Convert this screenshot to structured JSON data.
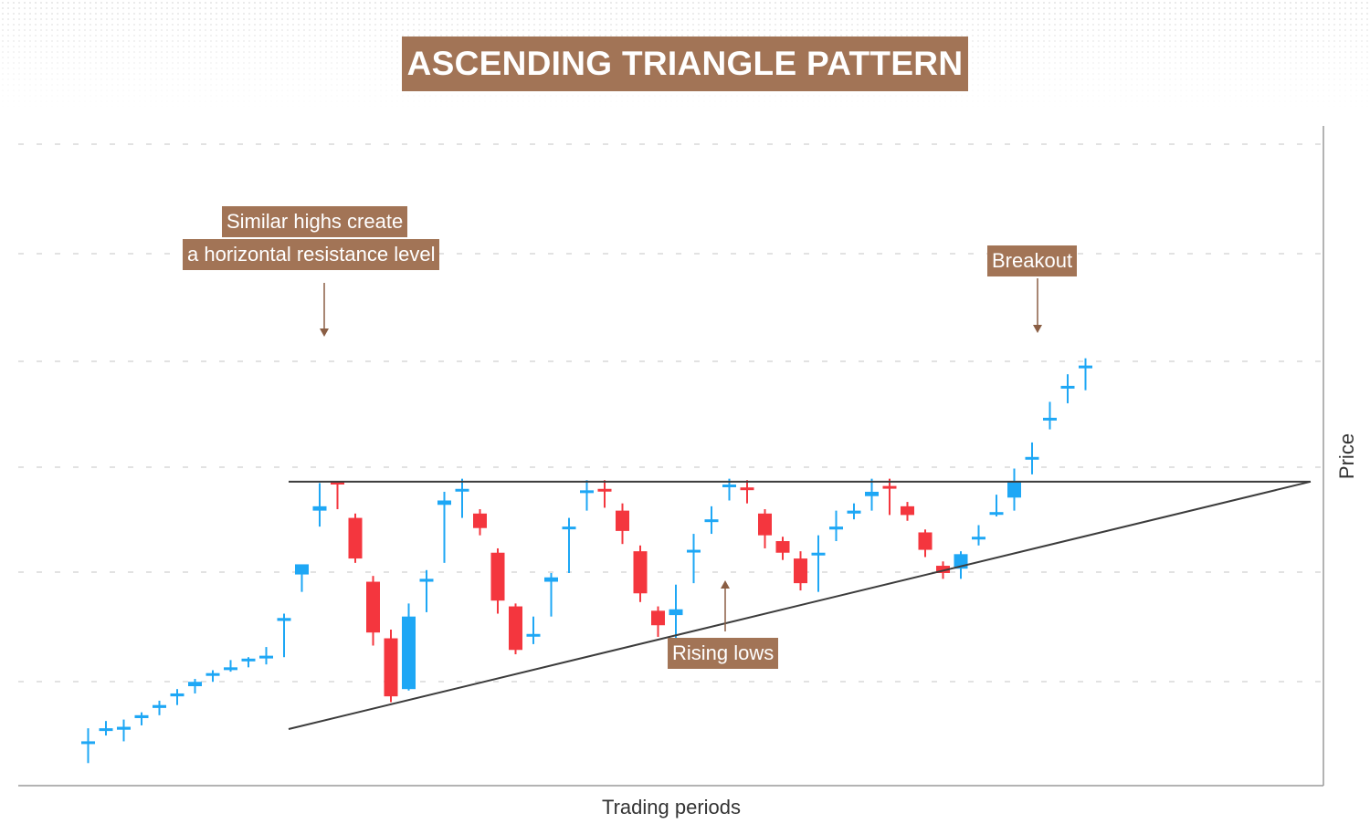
{
  "title": "ASCENDING TRIANGLE PATTERN",
  "annotations": {
    "resistance_line1": "Similar highs create",
    "resistance_line2": "a horizontal resistance level",
    "rising_lows": "Rising lows",
    "breakout": "Breakout"
  },
  "chart_data": {
    "type": "candlestick",
    "title": "ASCENDING TRIANGLE PATTERN",
    "xlabel": "Trading periods",
    "ylabel": "Price",
    "grid": true,
    "colors": {
      "bullish": "#1ea7f5",
      "bearish": "#f4363e",
      "accent": "#a27456",
      "line": "#3c3c3c"
    },
    "candles": [
      {
        "o": 172,
        "h": 182,
        "l": 158,
        "c": 173,
        "dir": "up"
      },
      {
        "o": 181,
        "h": 187,
        "l": 177,
        "c": 182,
        "dir": "up"
      },
      {
        "o": 181,
        "h": 188,
        "l": 173,
        "c": 183,
        "dir": "up"
      },
      {
        "o": 189,
        "h": 193,
        "l": 184,
        "c": 191,
        "dir": "up"
      },
      {
        "o": 198,
        "h": 201,
        "l": 191,
        "c": 196,
        "dir": "up"
      },
      {
        "o": 204,
        "h": 209,
        "l": 198,
        "c": 206,
        "dir": "up"
      },
      {
        "o": 211,
        "h": 216,
        "l": 206,
        "c": 214,
        "dir": "up"
      },
      {
        "o": 220,
        "h": 222,
        "l": 214,
        "c": 219,
        "dir": "up"
      },
      {
        "o": 224,
        "h": 229,
        "l": 221,
        "c": 224,
        "dir": "up"
      },
      {
        "o": 229,
        "h": 231,
        "l": 224,
        "c": 230,
        "dir": "up"
      },
      {
        "o": 232,
        "h": 238,
        "l": 226,
        "c": 231,
        "dir": "up"
      },
      {
        "o": 256,
        "h": 261,
        "l": 231,
        "c": 258,
        "dir": "up"
      },
      {
        "o": 288,
        "h": 294,
        "l": 276,
        "c": 295,
        "dir": "up"
      },
      {
        "o": 332,
        "h": 351,
        "l": 321,
        "c": 335,
        "dir": "up"
      },
      {
        "o": 350,
        "h": 352,
        "l": 333,
        "c": 352,
        "dir": "down"
      },
      {
        "o": 327,
        "h": 330,
        "l": 296,
        "c": 299,
        "dir": "down"
      },
      {
        "o": 283,
        "h": 287,
        "l": 239,
        "c": 248,
        "dir": "down"
      },
      {
        "o": 244,
        "h": 250,
        "l": 200,
        "c": 204,
        "dir": "down"
      },
      {
        "o": 259,
        "h": 268,
        "l": 208,
        "c": 209,
        "dir": "up"
      },
      {
        "o": 285,
        "h": 291,
        "l": 262,
        "c": 283,
        "dir": "up"
      },
      {
        "o": 339,
        "h": 345,
        "l": 296,
        "c": 336,
        "dir": "up"
      },
      {
        "o": 347,
        "h": 354,
        "l": 327,
        "c": 347,
        "dir": "up"
      },
      {
        "o": 330,
        "h": 333,
        "l": 315,
        "c": 320,
        "dir": "down"
      },
      {
        "o": 303,
        "h": 306,
        "l": 261,
        "c": 270,
        "dir": "down"
      },
      {
        "o": 266,
        "h": 268,
        "l": 233,
        "c": 236,
        "dir": "down"
      },
      {
        "o": 247,
        "h": 259,
        "l": 240,
        "c": 247,
        "dir": "up"
      },
      {
        "o": 286,
        "h": 289,
        "l": 259,
        "c": 283,
        "dir": "up"
      },
      {
        "o": 321,
        "h": 327,
        "l": 289,
        "c": 321,
        "dir": "up"
      },
      {
        "o": 346,
        "h": 353,
        "l": 332,
        "c": 346,
        "dir": "up"
      },
      {
        "o": 347,
        "h": 353,
        "l": 334,
        "c": 347,
        "dir": "down"
      },
      {
        "o": 332,
        "h": 337,
        "l": 309,
        "c": 318,
        "dir": "down"
      },
      {
        "o": 304,
        "h": 308,
        "l": 269,
        "c": 275,
        "dir": "down"
      },
      {
        "o": 263,
        "h": 266,
        "l": 245,
        "c": 253,
        "dir": "down"
      },
      {
        "o": 264,
        "h": 281,
        "l": 233,
        "c": 260,
        "dir": "up"
      },
      {
        "o": 305,
        "h": 316,
        "l": 282,
        "c": 305,
        "dir": "up"
      },
      {
        "o": 326,
        "h": 335,
        "l": 316,
        "c": 326,
        "dir": "up"
      },
      {
        "o": 350,
        "h": 354,
        "l": 339,
        "c": 350,
        "dir": "up"
      },
      {
        "o": 348,
        "h": 353,
        "l": 337,
        "c": 347,
        "dir": "down"
      },
      {
        "o": 330,
        "h": 333,
        "l": 306,
        "c": 315,
        "dir": "down"
      },
      {
        "o": 311,
        "h": 314,
        "l": 298,
        "c": 303,
        "dir": "down"
      },
      {
        "o": 299,
        "h": 304,
        "l": 277,
        "c": 282,
        "dir": "down"
      },
      {
        "o": 302,
        "h": 315,
        "l": 276,
        "c": 303,
        "dir": "up"
      },
      {
        "o": 319,
        "h": 332,
        "l": 311,
        "c": 321,
        "dir": "up"
      },
      {
        "o": 332,
        "h": 337,
        "l": 326,
        "c": 330,
        "dir": "up"
      },
      {
        "o": 342,
        "h": 354,
        "l": 332,
        "c": 345,
        "dir": "up"
      },
      {
        "o": 349,
        "h": 354,
        "l": 329,
        "c": 349,
        "dir": "down"
      },
      {
        "o": 335,
        "h": 338,
        "l": 325,
        "c": 329,
        "dir": "down"
      },
      {
        "o": 317,
        "h": 319,
        "l": 300,
        "c": 305,
        "dir": "down"
      },
      {
        "o": 294,
        "h": 297,
        "l": 285,
        "c": 289,
        "dir": "down"
      },
      {
        "o": 302,
        "h": 304,
        "l": 285,
        "c": 292,
        "dir": "up"
      },
      {
        "o": 314,
        "h": 322,
        "l": 308,
        "c": 314,
        "dir": "up"
      },
      {
        "o": 331,
        "h": 343,
        "l": 328,
        "c": 330,
        "dir": "up"
      },
      {
        "o": 352,
        "h": 361,
        "l": 332,
        "c": 341,
        "dir": "up"
      },
      {
        "o": 369,
        "h": 379,
        "l": 357,
        "c": 369,
        "dir": "up"
      },
      {
        "o": 395,
        "h": 407,
        "l": 388,
        "c": 396,
        "dir": "up"
      },
      {
        "o": 417,
        "h": 426,
        "l": 406,
        "c": 418,
        "dir": "up"
      },
      {
        "o": 432,
        "h": 437,
        "l": 415,
        "c": 432,
        "dir": "up"
      }
    ],
    "resistance_level": 352,
    "support_line": {
      "from": {
        "period": 0,
        "price": 160
      },
      "to": {
        "period": 68,
        "price": 352
      }
    },
    "ylim": [
      150,
      450
    ]
  }
}
